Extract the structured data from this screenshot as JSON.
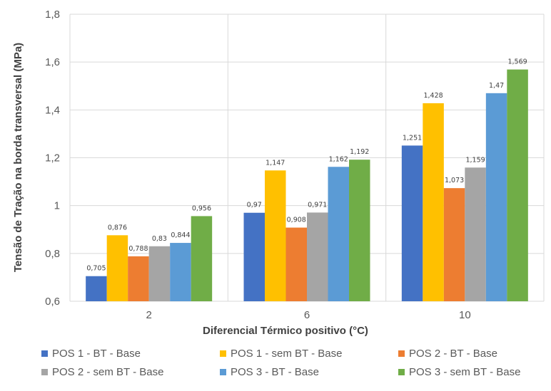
{
  "chart_data": {
    "type": "bar",
    "title": "",
    "xlabel": "Diferencial Térmico positivo (°C)",
    "ylabel": "Tensão de Tração na borda transversal (MPa)",
    "ylim": [
      0.6,
      1.8
    ],
    "yticks": [
      0.6,
      0.8,
      1,
      1.2,
      1.4,
      1.6,
      1.8
    ],
    "ytick_labels": [
      "0,6",
      "0,8",
      "1",
      "1,2",
      "1,4",
      "1,6",
      "1,8"
    ],
    "categories": [
      "2",
      "6",
      "10"
    ],
    "grid": true,
    "legend_position": "bottom",
    "series": [
      {
        "name": "POS 1 - BT - Base",
        "color": "#4472C4",
        "values": [
          0.705,
          0.97,
          1.251
        ],
        "labels": [
          "0,705",
          "0,97",
          "1,251"
        ]
      },
      {
        "name": "POS 1 - sem BT - Base",
        "color": "#FFC000",
        "values": [
          0.876,
          1.147,
          1.428
        ],
        "labels": [
          "0,876",
          "1,147",
          "1,428"
        ]
      },
      {
        "name": "POS 2 - BT - Base",
        "color": "#ED7D31",
        "values": [
          0.788,
          0.908,
          1.073
        ],
        "labels": [
          "0,788",
          "0,908",
          "1,073"
        ]
      },
      {
        "name": "POS 2 - sem BT - Base",
        "color": "#A5A5A5",
        "values": [
          0.83,
          0.971,
          1.159
        ],
        "labels": [
          "0,83",
          "0,971",
          "1,159"
        ]
      },
      {
        "name": "POS 3 - BT - Base",
        "color": "#5B9BD5",
        "values": [
          0.844,
          1.162,
          1.47
        ],
        "labels": [
          "0,844",
          "1,162",
          "1,47"
        ]
      },
      {
        "name": "POS 3 - sem BT - Base",
        "color": "#70AD47",
        "values": [
          0.956,
          1.192,
          1.569
        ],
        "labels": [
          "0,956",
          "1,192",
          "1,569"
        ]
      }
    ]
  }
}
